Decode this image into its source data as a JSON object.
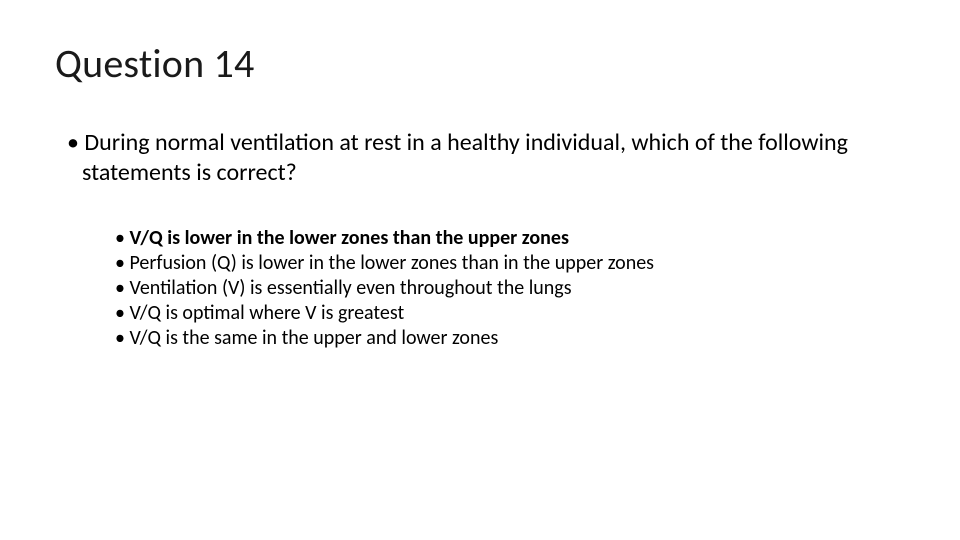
{
  "slide": {
    "title": "Question 14",
    "question": "During normal ventilation at rest in a healthy individual, which of the following statements is correct?",
    "options": [
      {
        "text": "V/Q is lower in the lower zones than the upper zones",
        "bold": true
      },
      {
        "text": "Perfusion (Q) is lower in the lower zones than in the upper zones",
        "bold": false
      },
      {
        "text": "Ventilation (V) is essentially even throughout the lungs",
        "bold": false
      },
      {
        "text": "V/Q is optimal where V is greatest",
        "bold": false
      },
      {
        "text": "V/Q is the same in the upper and lower zones",
        "bold": false
      }
    ],
    "styling": {
      "background_color": "#ffffff",
      "text_color": "#000000",
      "title_fontsize_pt": 30,
      "body_fontsize_pt": 18,
      "option_fontsize_pt": 15,
      "font_family": "Calibri"
    }
  }
}
